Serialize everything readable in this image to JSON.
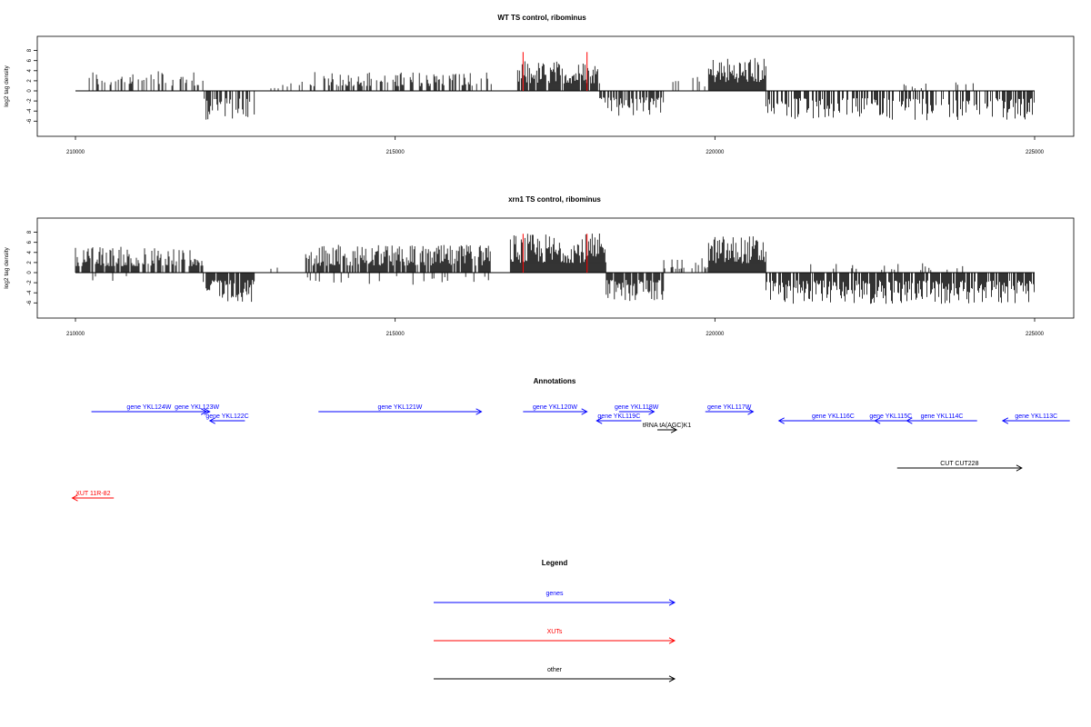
{
  "chart_data": [
    {
      "type": "bar",
      "title": "WT TS control, ribominus",
      "xlabel": "",
      "ylabel": "log2 tag density",
      "xlim": [
        210000,
        225000
      ],
      "ylim": [
        -6,
        8
      ],
      "x_ticks": [
        210000,
        215000,
        220000,
        225000
      ],
      "y_ticks": [
        -6,
        -4,
        -2,
        0,
        2,
        4,
        6,
        8
      ],
      "red_markers": [
        {
          "x": 217000,
          "y": 7.7
        },
        {
          "x": 218000,
          "y": 7.7
        }
      ],
      "series": [
        {
          "x": 210200,
          "x_end": 212000,
          "max": 4.2,
          "sign": "+",
          "density": 0.35
        },
        {
          "x": 212000,
          "x_end": 212800,
          "max": -5.8,
          "sign": "-",
          "density": 0.6
        },
        {
          "x": 213000,
          "x_end": 213400,
          "max": 1.5,
          "sign": "+",
          "density": 0.15
        },
        {
          "x": 213500,
          "x_end": 216500,
          "max": 3.8,
          "sign": "+",
          "density": 0.45
        },
        {
          "x": 216900,
          "x_end": 218200,
          "max": 6.0,
          "sign": "+",
          "density": 0.85
        },
        {
          "x": 218200,
          "x_end": 219200,
          "max": -5.2,
          "sign": "-",
          "density": 0.7
        },
        {
          "x": 219200,
          "x_end": 219900,
          "max": 3.5,
          "sign": "+",
          "density": 0.15
        },
        {
          "x": 219900,
          "x_end": 220800,
          "max": 6.8,
          "sign": "+",
          "density": 1.0
        },
        {
          "x": 220800,
          "x_end": 225000,
          "max": -5.8,
          "sign": "-",
          "density": 0.55
        },
        {
          "x": 222800,
          "x_end": 224200,
          "max": 1.8,
          "sign": "+",
          "density": 0.08
        }
      ]
    },
    {
      "type": "bar",
      "title": "xrn1 TS control, ribominus",
      "xlabel": "",
      "ylabel": "log2 tag density",
      "xlim": [
        210000,
        225000
      ],
      "ylim": [
        -6,
        8
      ],
      "x_ticks": [
        210000,
        215000,
        220000,
        225000
      ],
      "y_ticks": [
        -6,
        -4,
        -2,
        0,
        2,
        4,
        6,
        8
      ],
      "red_markers": [
        {
          "x": 217000,
          "y": 7.7
        },
        {
          "x": 218000,
          "y": 7.7
        }
      ],
      "series": [
        {
          "x": 210000,
          "x_end": 212000,
          "max": 5.2,
          "sign": "+",
          "density": 0.75
        },
        {
          "x": 210000,
          "x_end": 211000,
          "max": -2.5,
          "sign": "-",
          "density": 0.05
        },
        {
          "x": 212000,
          "x_end": 212800,
          "max": -5.8,
          "sign": "-",
          "density": 0.8
        },
        {
          "x": 213000,
          "x_end": 213300,
          "max": 1.6,
          "sign": "+",
          "density": 0.15
        },
        {
          "x": 213600,
          "x_end": 216500,
          "max": 5.5,
          "sign": "+",
          "density": 0.85
        },
        {
          "x": 213600,
          "x_end": 216500,
          "max": -2.5,
          "sign": "-",
          "density": 0.1
        },
        {
          "x": 216800,
          "x_end": 218300,
          "max": 7.8,
          "sign": "+",
          "density": 1.0
        },
        {
          "x": 218300,
          "x_end": 219200,
          "max": -5.8,
          "sign": "-",
          "density": 0.85
        },
        {
          "x": 219200,
          "x_end": 219900,
          "max": 3.0,
          "sign": "+",
          "density": 0.2
        },
        {
          "x": 219900,
          "x_end": 220800,
          "max": 7.5,
          "sign": "+",
          "density": 1.0
        },
        {
          "x": 220800,
          "x_end": 225000,
          "max": -6.2,
          "sign": "-",
          "density": 0.85
        },
        {
          "x": 221500,
          "x_end": 224200,
          "max": 2.0,
          "sign": "+",
          "density": 0.1
        }
      ]
    }
  ],
  "annotations": {
    "title": "Annotations",
    "features": [
      {
        "label": "gene YKL124W",
        "start": 210250,
        "end": 212050,
        "strand": "+",
        "kind": "gene",
        "row": 0
      },
      {
        "label": "gene YKL123W",
        "start": 211700,
        "end": 212100,
        "strand": "+",
        "kind": "gene",
        "row": 0
      },
      {
        "label": "gene YKL122C",
        "start": 212100,
        "end": 212650,
        "strand": "-",
        "kind": "gene",
        "row": 1
      },
      {
        "label": "gene YKL121W",
        "start": 213800,
        "end": 216350,
        "strand": "+",
        "kind": "gene",
        "row": 0
      },
      {
        "label": "gene YKL120W",
        "start": 217000,
        "end": 218000,
        "strand": "+",
        "kind": "gene",
        "row": 0
      },
      {
        "label": "gene YKL119C",
        "start": 218150,
        "end": 218850,
        "strand": "-",
        "kind": "gene",
        "row": 1
      },
      {
        "label": "gene YKL118W",
        "start": 218500,
        "end": 219050,
        "strand": "+",
        "kind": "gene",
        "row": 0
      },
      {
        "label": "tRNA tA(AGC)K1",
        "start": 219100,
        "end": 219400,
        "strand": "+",
        "kind": "other",
        "row": 2
      },
      {
        "label": "gene YKL117W",
        "start": 219850,
        "end": 220600,
        "strand": "+",
        "kind": "gene",
        "row": 0
      },
      {
        "label": "gene YKL116C",
        "start": 221000,
        "end": 222700,
        "strand": "-",
        "kind": "gene",
        "row": 1
      },
      {
        "label": "gene YKL115C",
        "start": 222500,
        "end": 223000,
        "strand": "-",
        "kind": "gene",
        "row": 1
      },
      {
        "label": "gene YKL114C",
        "start": 223000,
        "end": 224100,
        "strand": "-",
        "kind": "gene",
        "row": 1
      },
      {
        "label": "gene YKL113C",
        "start": 224500,
        "end": 225550,
        "strand": "-",
        "kind": "gene",
        "row": 1
      },
      {
        "label": "CUT CUT228",
        "start": 222850,
        "end": 224800,
        "strand": "+",
        "kind": "other",
        "row": 3
      },
      {
        "label": "XUT 11R-82",
        "start": 209950,
        "end": 210600,
        "strand": "-",
        "kind": "xut",
        "row": 4
      }
    ]
  },
  "legend": {
    "title": "Legend",
    "items": [
      {
        "label": "genes",
        "color": "#0000ff"
      },
      {
        "label": "XUTs",
        "color": "#ff0000"
      },
      {
        "label": "other",
        "color": "#000000"
      }
    ]
  },
  "colors": {
    "gene": "#0000ff",
    "xut": "#ff0000",
    "other": "#000000",
    "marker": "#ff0000"
  }
}
